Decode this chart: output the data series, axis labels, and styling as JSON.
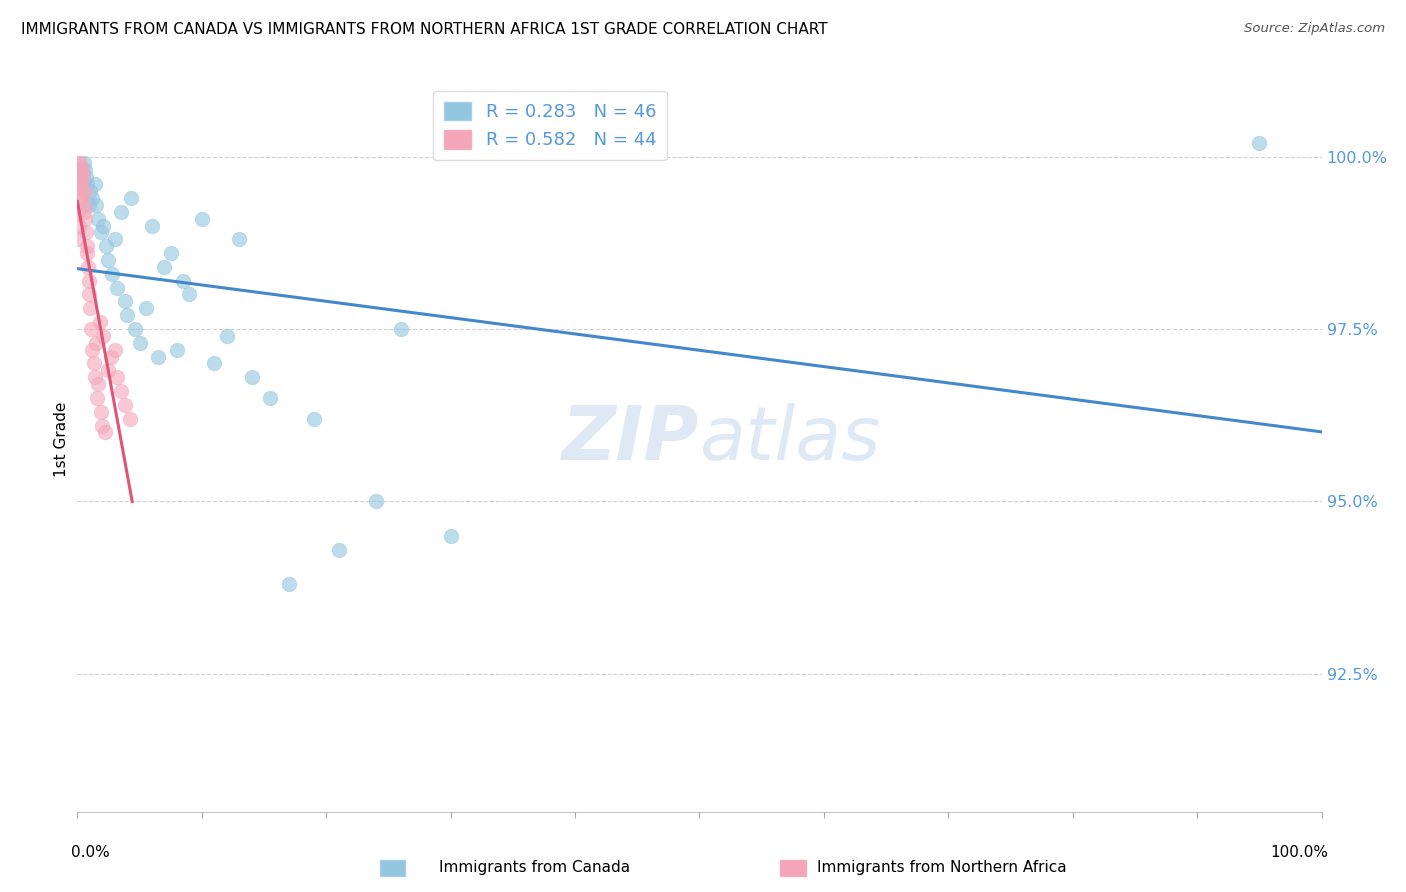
{
  "title": "IMMIGRANTS FROM CANADA VS IMMIGRANTS FROM NORTHERN AFRICA 1ST GRADE CORRELATION CHART",
  "source": "Source: ZipAtlas.com",
  "ylabel": "1st Grade",
  "xlim": [
    0.0,
    100.0
  ],
  "ylim": [
    90.5,
    101.3
  ],
  "legend_label1": "Immigrants from Canada",
  "legend_label2": "Immigrants from Northern Africa",
  "r1": 0.283,
  "n1": 46,
  "r2": 0.582,
  "n2": 44,
  "color_blue": "#92c5de",
  "color_pink": "#f4a6b8",
  "color_blue_line": "#4488cc",
  "color_pink_line": "#e05575",
  "color_ytick": "#5599dd",
  "watermark_zip": "ZIP",
  "watermark_atlas": "atlas",
  "ytick_positions": [
    92.5,
    95.0,
    97.5,
    100.0
  ],
  "ytick_labels": [
    "92.5%",
    "95.0%",
    "97.5%",
    "100.0%"
  ],
  "canada_x": [
    0.3,
    0.5,
    0.7,
    0.8,
    1.0,
    1.2,
    1.4,
    1.5,
    1.7,
    1.9,
    2.1,
    2.3,
    2.5,
    2.8,
    3.0,
    3.2,
    3.5,
    3.8,
    4.0,
    4.3,
    4.6,
    5.0,
    5.5,
    6.0,
    6.5,
    7.0,
    7.5,
    8.0,
    8.5,
    9.0,
    10.0,
    11.0,
    12.0,
    13.0,
    14.0,
    15.5,
    17.0,
    19.0,
    21.0,
    24.0,
    26.0,
    30.0,
    0.4,
    0.6,
    0.9,
    95.0
  ],
  "canada_y": [
    99.8,
    99.9,
    99.7,
    99.6,
    99.5,
    99.4,
    99.6,
    99.3,
    99.1,
    98.9,
    99.0,
    98.7,
    98.5,
    98.3,
    98.8,
    98.1,
    99.2,
    97.9,
    97.7,
    99.4,
    97.5,
    97.3,
    97.8,
    99.0,
    97.1,
    98.4,
    98.6,
    97.2,
    98.2,
    98.0,
    99.1,
    97.0,
    97.4,
    98.8,
    96.8,
    96.5,
    93.8,
    96.2,
    94.3,
    95.0,
    97.5,
    94.5,
    99.6,
    99.8,
    99.3,
    100.2
  ],
  "africa_x": [
    0.05,
    0.1,
    0.15,
    0.2,
    0.25,
    0.3,
    0.35,
    0.4,
    0.45,
    0.5,
    0.55,
    0.6,
    0.65,
    0.7,
    0.75,
    0.8,
    0.85,
    0.9,
    0.95,
    1.0,
    1.1,
    1.2,
    1.3,
    1.4,
    1.5,
    1.6,
    1.7,
    1.8,
    1.9,
    2.0,
    2.1,
    2.2,
    2.5,
    2.7,
    3.0,
    3.2,
    3.5,
    3.8,
    0.05,
    0.05,
    0.05,
    0.08,
    0.12,
    4.2
  ],
  "africa_y": [
    99.9,
    99.8,
    99.7,
    99.9,
    99.6,
    99.5,
    99.8,
    99.4,
    99.7,
    99.3,
    99.2,
    99.5,
    99.1,
    98.9,
    98.7,
    98.6,
    98.4,
    98.2,
    98.0,
    97.8,
    97.5,
    97.2,
    97.0,
    96.8,
    97.3,
    96.5,
    96.7,
    97.6,
    96.3,
    96.1,
    97.4,
    96.0,
    96.9,
    97.1,
    97.2,
    96.8,
    96.6,
    96.4,
    99.6,
    99.4,
    99.2,
    98.8,
    99.0,
    96.2
  ]
}
